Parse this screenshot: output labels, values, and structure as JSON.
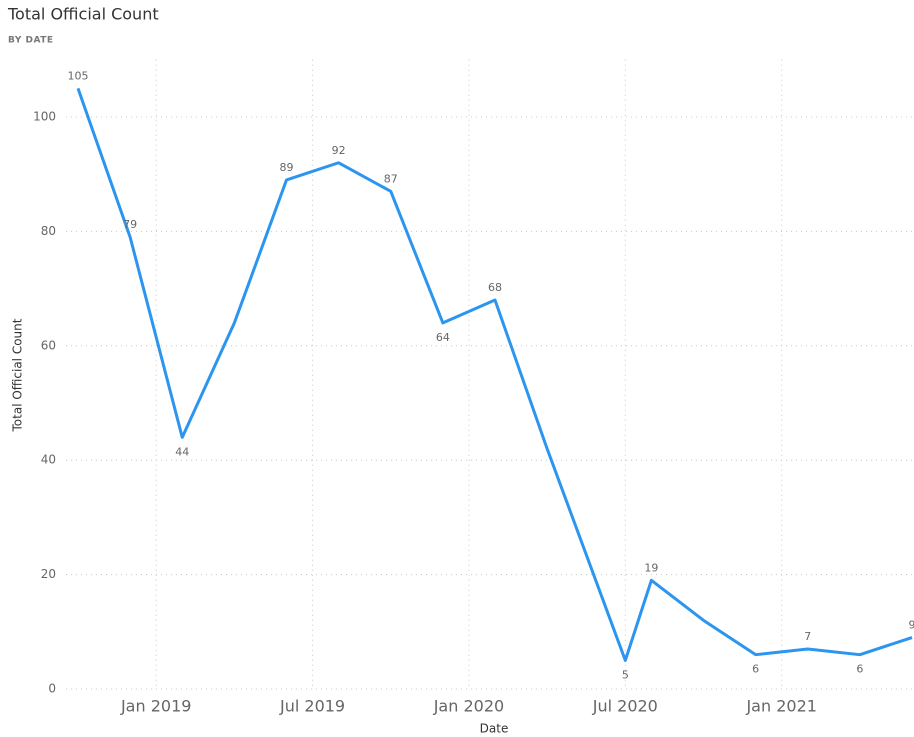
{
  "chart_data": {
    "type": "line",
    "title": "Total Official Count",
    "subtitle": "BY DATE",
    "x_label": "Date",
    "y_label": "Total Official Count",
    "x": [
      "2018-10",
      "2018-12",
      "2019-02",
      "2019-04",
      "2019-06",
      "2019-08",
      "2019-10",
      "2019-12",
      "2020-02",
      "2020-04",
      "2020-07",
      "2020-08",
      "2020-10",
      "2020-12",
      "2021-02",
      "2021-04",
      "2021-06"
    ],
    "series": [
      {
        "name": "Total Official Count",
        "color": "#2b95ef",
        "values": [
          105,
          79,
          44,
          64,
          89,
          92,
          87,
          64,
          68,
          42,
          5,
          19,
          12,
          6,
          7,
          6,
          9
        ],
        "value_labels": [
          "105",
          "79",
          "44",
          null,
          "89",
          "92",
          "87",
          "64",
          "68",
          null,
          "5",
          "19",
          null,
          "6",
          "7",
          "6",
          "9"
        ]
      }
    ],
    "xlim": [
      "2018-10",
      "2021-06"
    ],
    "xticks": [
      {
        "value": "2019-01",
        "label": "Jan 2019"
      },
      {
        "value": "2019-07",
        "label": "Jul 2019"
      },
      {
        "value": "2020-01",
        "label": "Jan 2020"
      },
      {
        "value": "2020-07",
        "label": "Jul 2020"
      },
      {
        "value": "2021-01",
        "label": "Jan 2021"
      }
    ],
    "ylim": [
      0,
      110
    ],
    "yticks": [
      0,
      20,
      40,
      60,
      80,
      100
    ],
    "grid": true
  }
}
